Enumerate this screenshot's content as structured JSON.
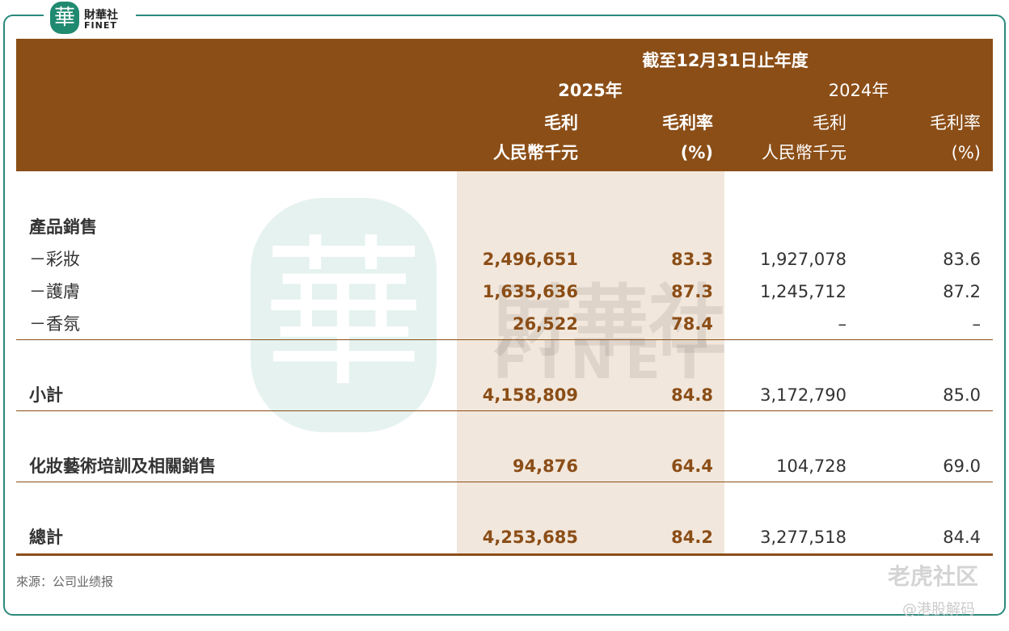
{
  "logo": {
    "mark": "華",
    "name": "財華社",
    "sub": "FINET"
  },
  "table": {
    "header": {
      "period": "截至12月31日止年度",
      "years": [
        "2025年",
        "2024年"
      ],
      "columns": [
        [
          "毛利",
          "人民幣千元"
        ],
        [
          "毛利率",
          "(%)"
        ],
        [
          "毛利",
          "人民幣千元"
        ],
        [
          "毛利率",
          "(%)"
        ]
      ]
    },
    "rows": [
      [
        "產品銷售"
      ],
      [
        "－彩妝",
        "2,496,651",
        "83.3",
        "1,927,078",
        "83.6"
      ],
      [
        "－護膚",
        "1,635,636",
        "87.3",
        "1,245,712",
        "87.2"
      ],
      [
        "－香氛",
        "26,522",
        "78.4",
        "–",
        "–"
      ],
      [
        "小計",
        "4,158,809",
        "84.8",
        "3,172,790",
        "85.0"
      ],
      [
        "化妝藝術培訓及相關銷售",
        "94,876",
        "64.4",
        "104,728",
        "69.0"
      ],
      [
        "總計",
        "4,253,685",
        "84.2",
        "3,277,518",
        "84.4"
      ]
    ]
  },
  "source": "來源：公司业绩报",
  "watermarks": [
    "老虎社区",
    "@港股解码"
  ]
}
